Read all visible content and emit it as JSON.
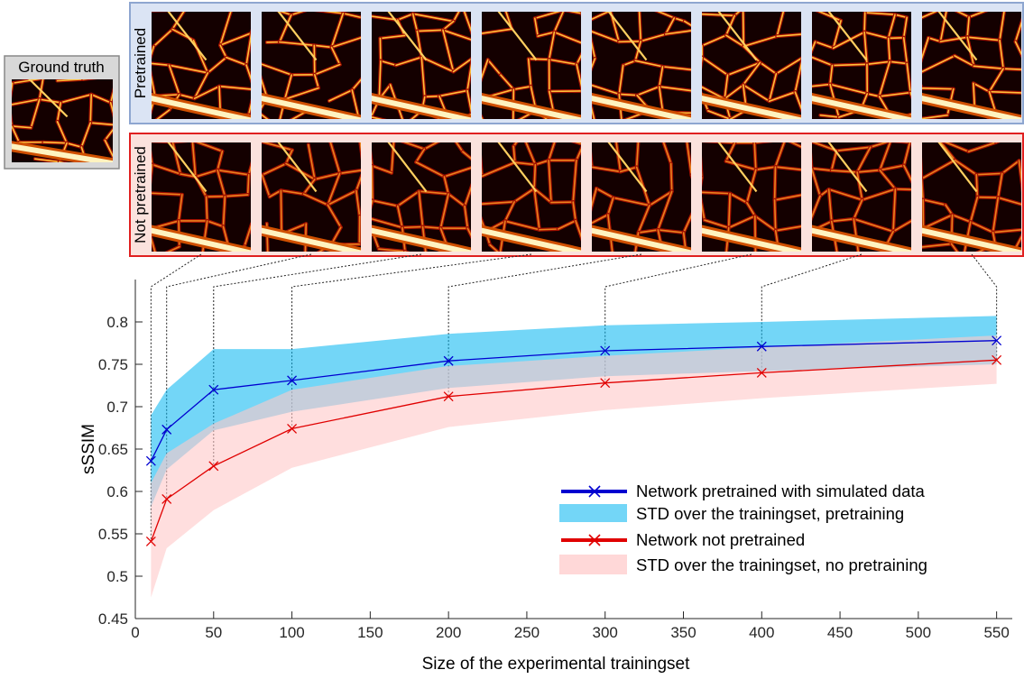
{
  "ground_truth_label": "Ground truth",
  "row_labels": {
    "pretrained": "Pretrained",
    "not_pretrained": "Not pretrained"
  },
  "colors": {
    "pretrained_line": "#0000d0",
    "pretrained_band": "#00b4f0",
    "not_pretrained_line": "#e00000",
    "not_pretrained_band": "#ffc8c8",
    "pretrained_frame_fill": "#dbe4f4",
    "pretrained_frame_stroke": "#8ea6d0",
    "not_pretrained_frame_fill": "#fbe2dd",
    "not_pretrained_frame_stroke": "#e02020",
    "gt_frame_fill": "#d8d8d8",
    "gt_frame_stroke": "#888888"
  },
  "chart_data": {
    "type": "line",
    "xlabel": "Size of the experimental trainingset",
    "ylabel": "sSSIM",
    "xlim": [
      0,
      560
    ],
    "ylim": [
      0.45,
      0.85
    ],
    "xticks": [
      0,
      50,
      100,
      150,
      200,
      250,
      300,
      350,
      400,
      450,
      500,
      550
    ],
    "yticks": [
      0.45,
      0.5,
      0.55,
      0.6,
      0.65,
      0.7,
      0.75,
      0.8
    ],
    "x": [
      10,
      20,
      50,
      100,
      200,
      300,
      400,
      550
    ],
    "series": [
      {
        "name": "Network pretrained with simulated data",
        "values": [
          0.636,
          0.673,
          0.72,
          0.731,
          0.754,
          0.766,
          0.771,
          0.778
        ],
        "std_name": "STD over the trainingset, pretraining",
        "upper": [
          0.69,
          0.72,
          0.768,
          0.768,
          0.786,
          0.796,
          0.8,
          0.807
        ],
        "lower": [
          0.582,
          0.626,
          0.672,
          0.694,
          0.722,
          0.736,
          0.742,
          0.75
        ]
      },
      {
        "name": "Network not pretrained",
        "values": [
          0.541,
          0.591,
          0.63,
          0.674,
          0.712,
          0.728,
          0.74,
          0.755
        ],
        "std_name": "STD over the trainingset, no pretraining",
        "upper": [
          0.61,
          0.645,
          0.68,
          0.72,
          0.748,
          0.76,
          0.77,
          0.784
        ],
        "lower": [
          0.475,
          0.533,
          0.578,
          0.628,
          0.676,
          0.696,
          0.71,
          0.727
        ]
      }
    ],
    "grid": false,
    "legend_position": "lower-right"
  }
}
